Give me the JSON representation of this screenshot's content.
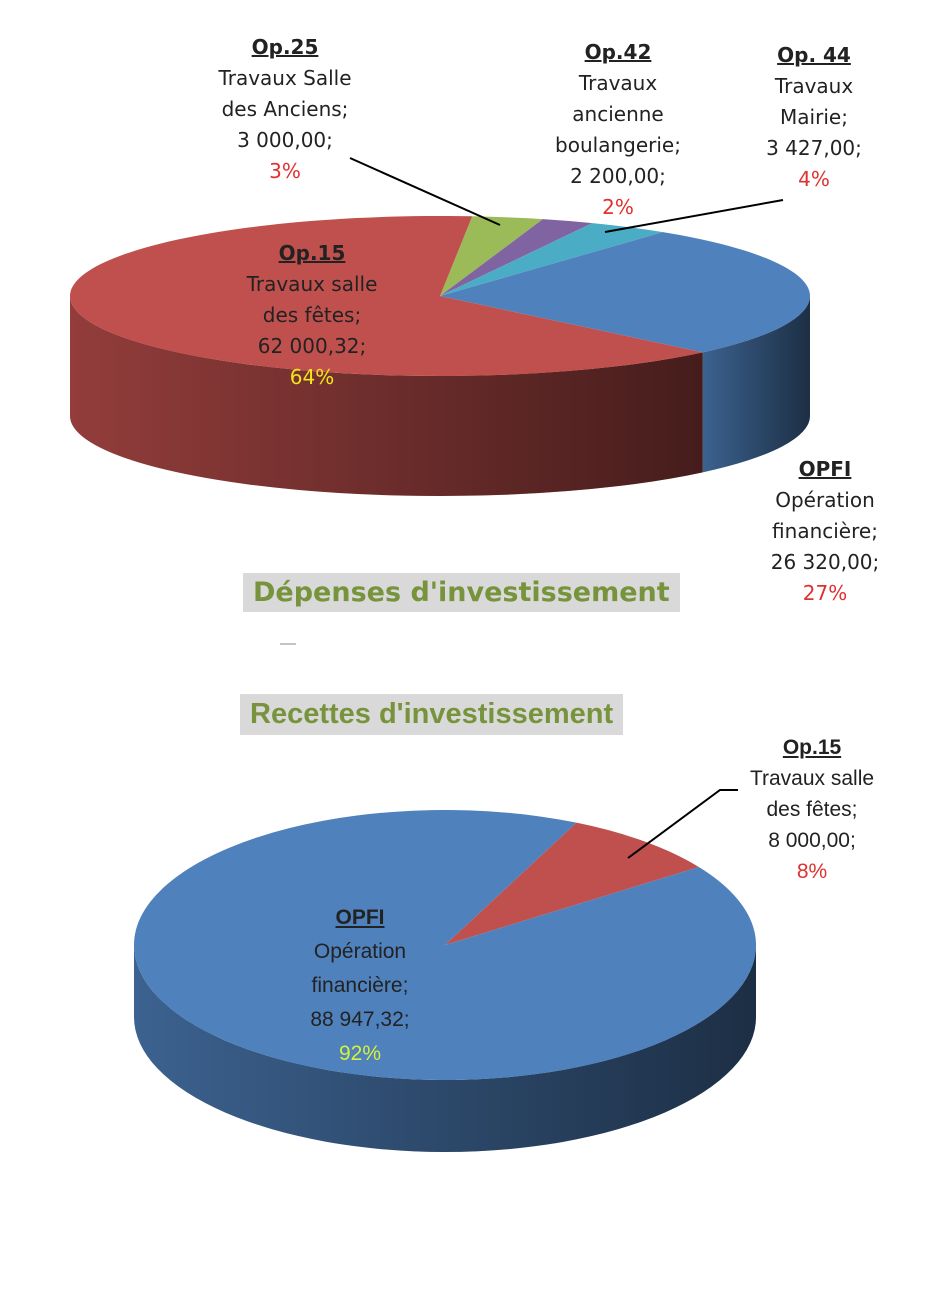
{
  "chart_data": [
    {
      "type": "pie",
      "title": "Dépenses d'investissement",
      "slices": [
        {
          "code": "Op.25",
          "name_lines": [
            "Travaux Salle",
            "des Anciens;"
          ],
          "value_text": "3 000,00;",
          "value": 3000.0,
          "percent_text": "3%",
          "percent": 3,
          "color": "#9bbb59"
        },
        {
          "code": "Op.42",
          "name_lines": [
            "Travaux",
            "ancienne",
            "boulangerie;"
          ],
          "value_text": "2 200,00;",
          "value": 2200.0,
          "percent_text": "2%",
          "percent": 2,
          "color": "#8064a2"
        },
        {
          "code": "Op. 44",
          "name_lines": [
            "Travaux",
            "Mairie;"
          ],
          "value_text": "3 427,00;",
          "value": 3427.0,
          "percent_text": "4%",
          "percent": 4,
          "color": "#4bacc6"
        },
        {
          "code": "OPFI",
          "name_lines": [
            "Opération",
            "financière;"
          ],
          "value_text": "26 320,00;",
          "value": 26320.0,
          "percent_text": "27%",
          "percent": 27,
          "color": "#4f81bd"
        },
        {
          "code": "Op.15",
          "name_lines": [
            "Travaux salle",
            "des fêtes;"
          ],
          "value_text": "62 000,32;",
          "value": 62000.32,
          "percent_text": "64%",
          "percent": 64,
          "color": "#c0504d"
        }
      ]
    },
    {
      "type": "pie",
      "title": "Recettes d'investissement",
      "slices": [
        {
          "code": "Op.15",
          "name_lines": [
            "Travaux salle",
            "des fêtes;"
          ],
          "value_text": "8 000,00;",
          "value": 8000.0,
          "percent_text": "8%",
          "percent": 8,
          "color": "#c0504d"
        },
        {
          "code": "OPFI",
          "name_lines": [
            "Opération",
            "financière;"
          ],
          "value_text": "88 947,32;",
          "value": 88947.32,
          "percent_text": "92%",
          "percent": 92,
          "color": "#4f81bd"
        }
      ]
    }
  ]
}
